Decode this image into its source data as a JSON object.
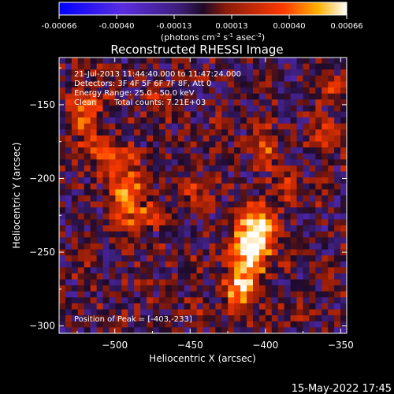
{
  "chart_data": {
    "type": "heatmap",
    "title": "Reconstructed RHESSI Image",
    "xlabel": "Heliocentric X (arcsec)",
    "ylabel": "Heliocentric Y (arcsec)",
    "x_ticks": [
      -500,
      -450,
      -400,
      -350
    ],
    "y_ticks": [
      -150,
      -200,
      -250,
      -300
    ],
    "x_range": [
      -537,
      -346
    ],
    "y_range": [
      -305,
      -118
    ],
    "colorbar": {
      "ticks": [
        "-0.00066",
        "-0.00040",
        "-0.00013",
        "0.00013",
        "0.00040",
        "0.00066"
      ],
      "min": -0.00066,
      "max": 0.00066,
      "units_label": "(photons cm",
      "units_parts": [
        "(photons cm",
        "-2",
        " s",
        "-1",
        " asec",
        "-2",
        ")"
      ]
    },
    "info": {
      "time": "21-Jul-2013 11:44:40.000 to 11:47:24.000",
      "detectors": "Detectors: 3F 4F 5F 6F 7F 8F, Att 0",
      "energy": "Energy Range: 25.0 - 50.0 keV",
      "algorithm": "Clean",
      "counts": "Total counts: 7.21E+03"
    },
    "peak_label": "Position of Peak = [-403,-233]",
    "peak": [
      -403,
      -233
    ],
    "sources": [
      {
        "x": -405,
        "y": -236,
        "sx": 9,
        "sy": 12,
        "amp": 0.00066
      },
      {
        "x": -412,
        "y": -258,
        "sx": 8,
        "sy": 14,
        "amp": 0.0005
      },
      {
        "x": -418,
        "y": -278,
        "sx": 7,
        "sy": 10,
        "amp": 0.0004
      },
      {
        "x": -492,
        "y": -212,
        "sx": 8,
        "sy": 16,
        "amp": 0.00048
      },
      {
        "x": -505,
        "y": -185,
        "sx": 10,
        "sy": 7,
        "amp": 0.00034
      },
      {
        "x": -520,
        "y": -155,
        "sx": 9,
        "sy": 14,
        "amp": 0.00036
      },
      {
        "x": -470,
        "y": -225,
        "sx": 8,
        "sy": 6,
        "amp": 0.00028
      },
      {
        "x": -448,
        "y": -210,
        "sx": 7,
        "sy": 6,
        "amp": 0.0003
      },
      {
        "x": -400,
        "y": -180,
        "sx": 5,
        "sy": 9,
        "amp": 0.00034
      },
      {
        "x": -385,
        "y": -205,
        "sx": 6,
        "sy": 7,
        "amp": 0.0003
      },
      {
        "x": -360,
        "y": -170,
        "sx": 6,
        "sy": 8,
        "amp": 0.0003
      },
      {
        "x": -358,
        "y": -140,
        "sx": 6,
        "sy": 6,
        "amp": 0.00024
      },
      {
        "x": -520,
        "y": -255,
        "sx": 7,
        "sy": 7,
        "amp": 0.00018
      },
      {
        "x": -447,
        "y": -256,
        "sx": 6,
        "sy": 6,
        "amp": 0.00016
      },
      {
        "x": -445,
        "y": -290,
        "sx": 6,
        "sy": 6,
        "amp": 0.00014
      },
      {
        "x": -380,
        "y": -290,
        "sx": 6,
        "sy": 6,
        "amp": 0.00016
      },
      {
        "x": -360,
        "y": -265,
        "sx": 6,
        "sy": 7,
        "amp": 0.00014
      },
      {
        "x": -470,
        "y": -150,
        "sx": 8,
        "sy": 7,
        "amp": 0.00018
      },
      {
        "x": -430,
        "y": -165,
        "sx": 6,
        "sy": 6,
        "amp": 0.00014
      }
    ],
    "colormap": {
      "stops": [
        0,
        0.22,
        0.42,
        0.5,
        0.58,
        0.78,
        0.9,
        1
      ],
      "colors": [
        "#0000ff",
        "#5a2de0",
        "#3c1e78",
        "#1e0a28",
        "#8a1a0a",
        "#ff3a00",
        "#ffb000",
        "#ffffff"
      ]
    }
  },
  "footer": {
    "date": "15-May-2022 17:45"
  }
}
